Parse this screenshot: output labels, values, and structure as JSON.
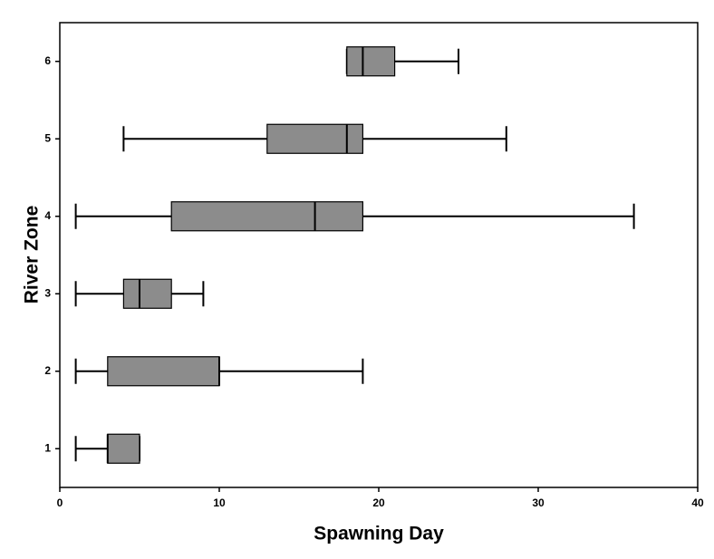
{
  "chart_data": {
    "type": "box",
    "x_label": "Spawning Day",
    "y_label": "River Zone",
    "categories": [
      "1",
      "2",
      "3",
      "4",
      "5",
      "6"
    ],
    "boxes": [
      {
        "min": 1,
        "q1": 3,
        "median": 3,
        "q3": 5,
        "max": 5
      },
      {
        "min": 1,
        "q1": 3,
        "median": 10,
        "q3": 10,
        "max": 19
      },
      {
        "min": 1,
        "q1": 4,
        "median": 5,
        "q3": 7,
        "max": 9
      },
      {
        "min": 1,
        "q1": 7,
        "median": 16,
        "q3": 19,
        "max": 36
      },
      {
        "min": 4,
        "q1": 13,
        "median": 18,
        "q3": 19,
        "max": 28
      },
      {
        "min": 18,
        "q1": 18,
        "median": 19,
        "q3": 21,
        "max": 25
      }
    ],
    "color": "#8c8c8c",
    "xlim": [
      0,
      40
    ],
    "xticks": [
      0,
      10,
      20,
      30,
      40
    ]
  }
}
